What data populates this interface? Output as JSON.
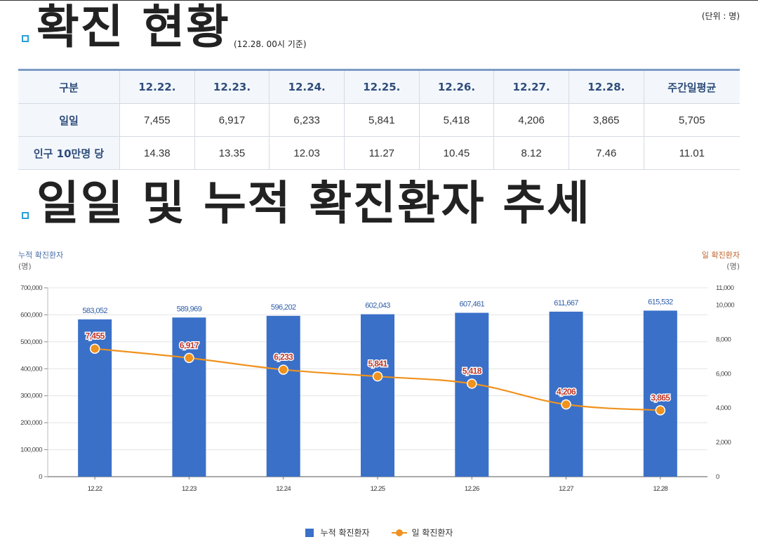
{
  "header": {
    "title": "확진 현황",
    "basis": "(12.28. 00시 기준)",
    "unit": "(단위 : 명)"
  },
  "table": {
    "headers": [
      "구분",
      "12.22.",
      "12.23.",
      "12.24.",
      "12.25.",
      "12.26.",
      "12.27.",
      "12.28.",
      "주간일평균"
    ],
    "rows": [
      {
        "label": "일일",
        "values": [
          "7,455",
          "6,917",
          "6,233",
          "5,841",
          "5,418",
          "4,206",
          "3,865",
          "5,705"
        ]
      },
      {
        "label": "인구 10만명 당",
        "values": [
          "14.38",
          "13.35",
          "12.03",
          "11.27",
          "10.45",
          "8.12",
          "7.46",
          "11.01"
        ]
      }
    ]
  },
  "section2": {
    "title": "일일 및 누적 확진환자 추세"
  },
  "colors": {
    "accent": "#2a9fd6",
    "bar": "#3a70c8",
    "line": "#f0921e",
    "line_label": "#c0392b",
    "left_axis_title": "#4a6fa8",
    "right_axis_title": "#c0632a"
  },
  "chart_data": {
    "type": "bar",
    "categories": [
      "12.22",
      "12.23",
      "12.24",
      "12.25",
      "12.26",
      "12.27",
      "12.28"
    ],
    "series": [
      {
        "name": "누적 확진환자",
        "kind": "bar",
        "axis": "left",
        "values": [
          583052,
          589969,
          596202,
          602043,
          607461,
          611667,
          615532
        ],
        "labels": [
          "583,052",
          "589,969",
          "596,202",
          "602,043",
          "607,461",
          "611,667",
          "615,532"
        ]
      },
      {
        "name": "일 확진환자",
        "kind": "line",
        "axis": "right",
        "values": [
          7455,
          6917,
          6233,
          5841,
          5418,
          4206,
          3865
        ],
        "labels": [
          "7,455",
          "6,917",
          "6,233",
          "5,841",
          "5,418",
          "4,206",
          "3,865"
        ]
      }
    ],
    "y_left": {
      "title": "누적 확진환자",
      "unit": "(명)",
      "range": [
        0,
        700000
      ],
      "ticks": [
        0,
        100000,
        200000,
        300000,
        400000,
        500000,
        600000,
        700000
      ],
      "tick_labels": [
        "0",
        "100,000",
        "200,000",
        "300,000",
        "400,000",
        "500,000",
        "600,000",
        "700,000"
      ]
    },
    "y_right": {
      "title": "일 확진환자",
      "unit": "(명)",
      "range": [
        0,
        11000
      ],
      "ticks": [
        0,
        2000,
        4000,
        6000,
        8000,
        10000,
        11000
      ],
      "tick_labels": [
        "0",
        "2,000",
        "4,000",
        "6,000",
        "8,000",
        "10,000",
        "11,000"
      ]
    },
    "grid": true,
    "legend_position": "bottom-center"
  }
}
